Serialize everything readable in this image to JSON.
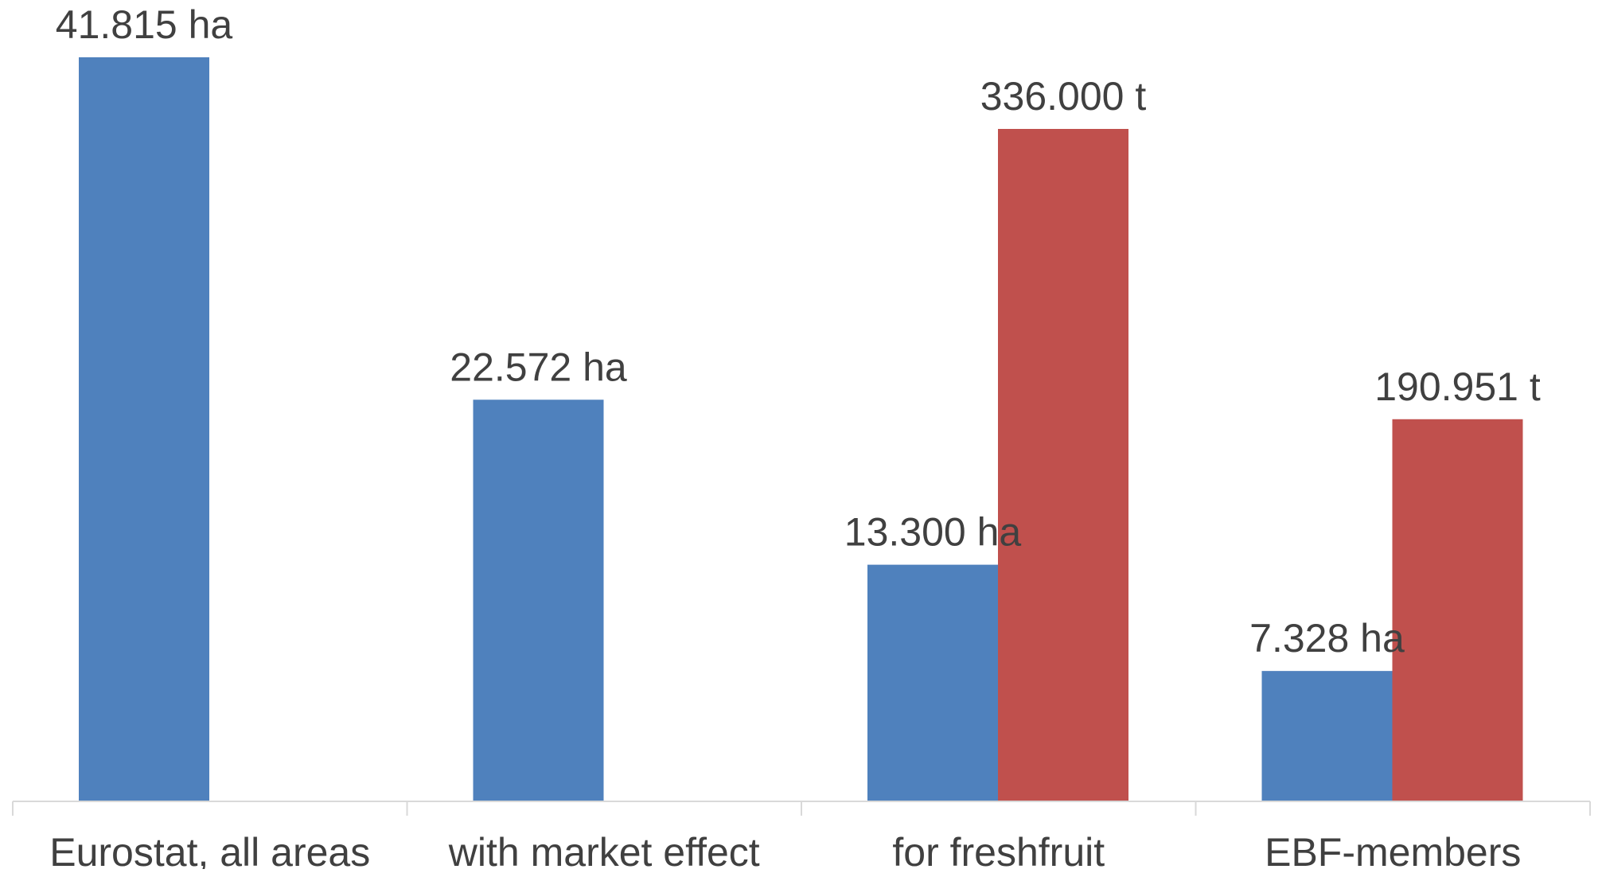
{
  "chart_data": {
    "type": "bar",
    "categories": [
      "Eurostat, all areas",
      "with market effect",
      "for freshfruit",
      "EBF-members"
    ],
    "series": [
      {
        "values": [
          41815,
          22572,
          13300,
          7328
        ],
        "value_labels": [
          "41.815 ha",
          "22.572 ha",
          "13.300 ha",
          "7.328 ha"
        ],
        "color": "#4f81bd"
      },
      {
        "values": [
          null,
          null,
          336000,
          190951
        ],
        "value_labels": [
          "",
          "",
          "336.000 t",
          "190.951 t"
        ],
        "color": "#c0504d"
      }
    ],
    "grid": false,
    "legend": "none"
  }
}
